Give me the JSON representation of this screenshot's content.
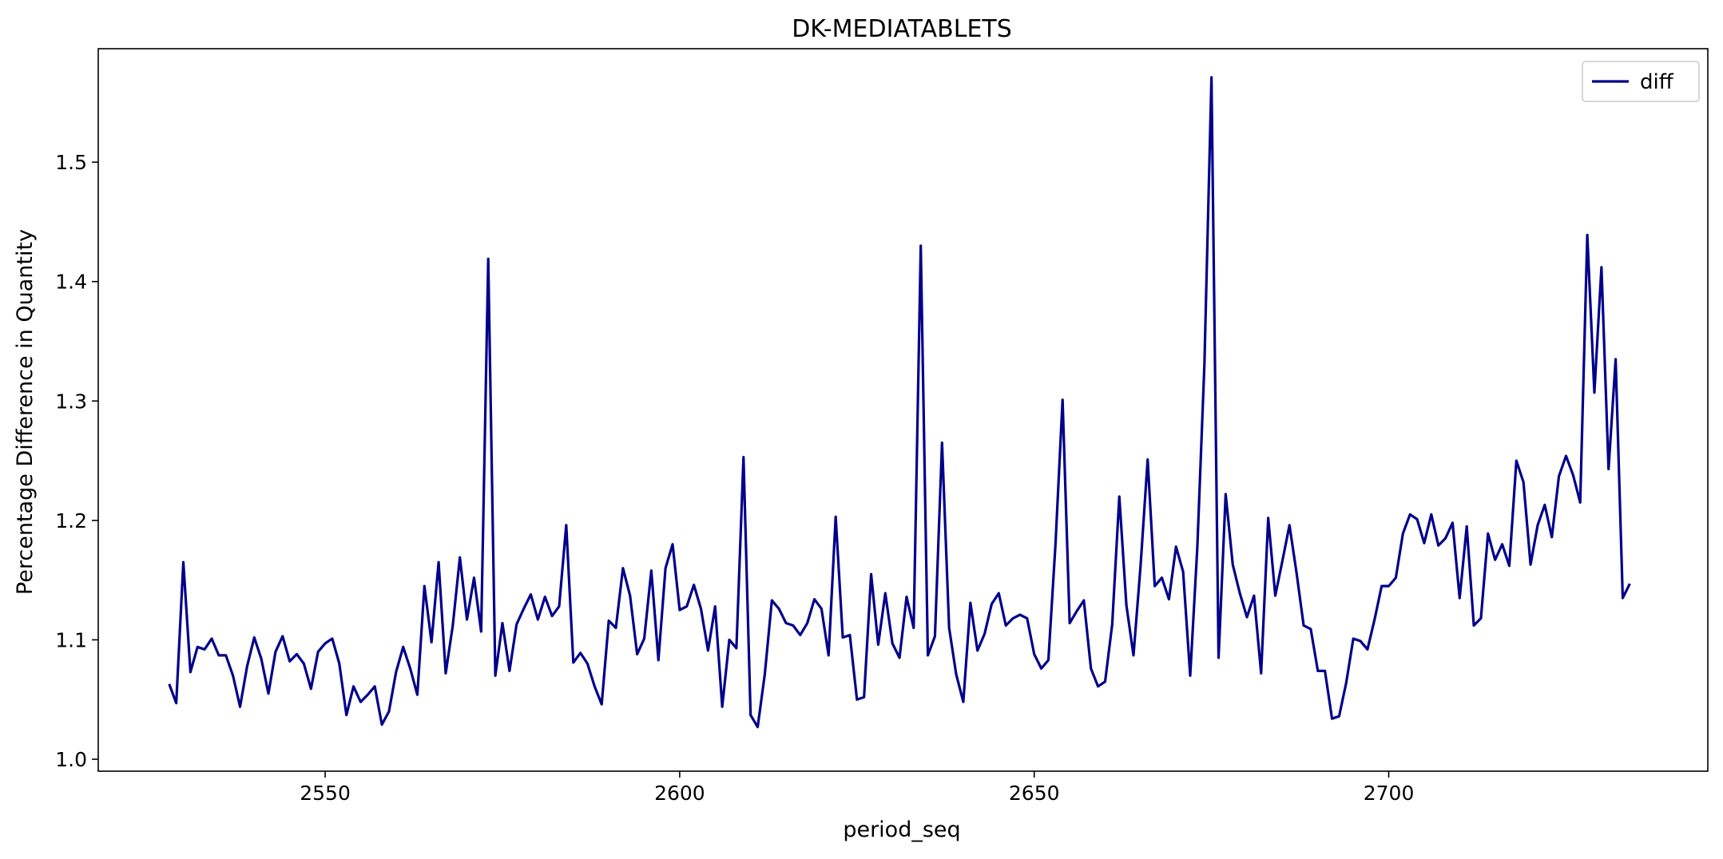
{
  "chart_data": {
    "type": "line",
    "title": "DK-MEDIATABLETS",
    "xlabel": "period_seq",
    "ylabel": "Percentage Difference in Quantity",
    "xlim": [
      2518,
      2745
    ],
    "ylim": [
      0.99,
      1.595
    ],
    "xticks": [
      2550,
      2600,
      2650,
      2700
    ],
    "yticks": [
      1.0,
      1.1,
      1.2,
      1.3,
      1.4,
      1.5
    ],
    "xtick_labels": [
      "2550",
      "2600",
      "2650",
      "2700"
    ],
    "ytick_labels": [
      "1.0",
      "1.1",
      "1.2",
      "1.3",
      "1.4",
      "1.5"
    ],
    "grid": false,
    "legend_position": "upper right",
    "series": [
      {
        "name": "diff",
        "color": "#00008b",
        "x_start": 2528,
        "x_step": 1,
        "values": [
          1.063,
          1.047,
          1.165,
          1.073,
          1.094,
          1.092,
          1.101,
          1.087,
          1.087,
          1.07,
          1.044,
          1.078,
          1.102,
          1.084,
          1.055,
          1.09,
          1.103,
          1.082,
          1.088,
          1.08,
          1.059,
          1.09,
          1.097,
          1.101,
          1.08,
          1.037,
          1.061,
          1.048,
          1.054,
          1.061,
          1.029,
          1.04,
          1.073,
          1.094,
          1.076,
          1.054,
          1.145,
          1.098,
          1.165,
          1.072,
          1.112,
          1.169,
          1.117,
          1.152,
          1.107,
          1.419,
          1.07,
          1.114,
          1.074,
          1.113,
          1.126,
          1.138,
          1.117,
          1.136,
          1.12,
          1.128,
          1.196,
          1.081,
          1.089,
          1.08,
          1.061,
          1.046,
          1.116,
          1.11,
          1.16,
          1.137,
          1.088,
          1.101,
          1.158,
          1.083,
          1.16,
          1.18,
          1.125,
          1.128,
          1.146,
          1.126,
          1.091,
          1.128,
          1.044,
          1.1,
          1.093,
          1.253,
          1.037,
          1.027,
          1.071,
          1.133,
          1.126,
          1.114,
          1.112,
          1.104,
          1.114,
          1.134,
          1.126,
          1.087,
          1.203,
          1.102,
          1.104,
          1.05,
          1.052,
          1.155,
          1.096,
          1.139,
          1.097,
          1.085,
          1.136,
          1.11,
          1.43,
          1.087,
          1.103,
          1.265,
          1.11,
          1.071,
          1.048,
          1.131,
          1.091,
          1.105,
          1.13,
          1.139,
          1.112,
          1.118,
          1.121,
          1.118,
          1.088,
          1.076,
          1.083,
          1.18,
          1.301,
          1.114,
          1.124,
          1.133,
          1.076,
          1.061,
          1.065,
          1.113,
          1.22,
          1.129,
          1.087,
          1.162,
          1.251,
          1.145,
          1.152,
          1.134,
          1.178,
          1.157,
          1.07,
          1.177,
          1.33,
          1.571,
          1.085,
          1.222,
          1.163,
          1.139,
          1.119,
          1.137,
          1.072,
          1.202,
          1.137,
          1.166,
          1.196,
          1.156,
          1.112,
          1.109,
          1.074,
          1.074,
          1.034,
          1.036,
          1.064,
          1.101,
          1.099,
          1.092,
          1.117,
          1.145,
          1.145,
          1.152,
          1.189,
          1.205,
          1.201,
          1.181,
          1.205,
          1.179,
          1.185,
          1.198,
          1.135,
          1.195,
          1.112,
          1.118,
          1.189,
          1.167,
          1.18,
          1.162,
          1.25,
          1.232,
          1.163,
          1.196,
          1.213,
          1.186,
          1.237,
          1.254,
          1.238,
          1.215,
          1.439,
          1.307,
          1.412,
          1.243,
          1.335,
          1.135,
          1.147
        ]
      }
    ]
  }
}
